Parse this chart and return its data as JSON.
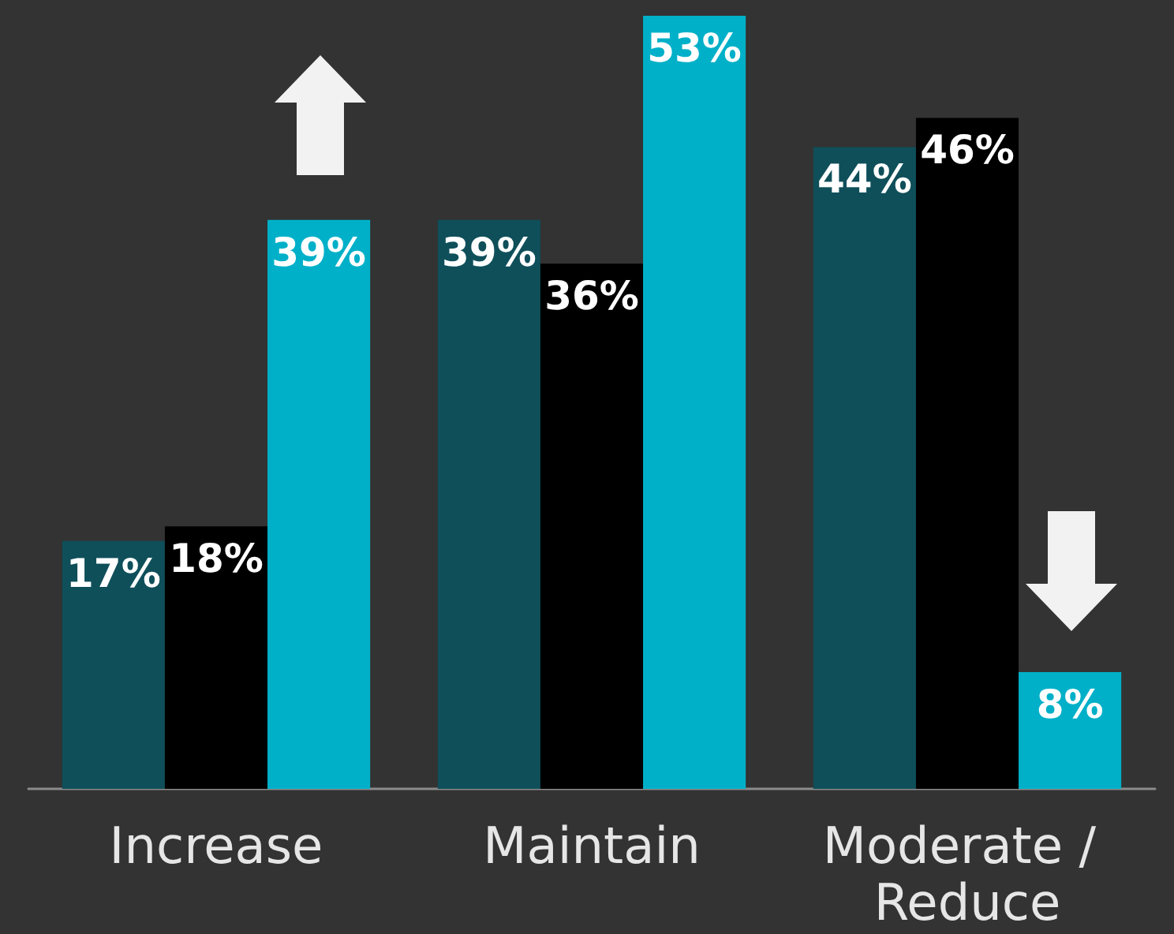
{
  "chart_data": {
    "type": "bar",
    "categories": [
      "Increase",
      "Maintain",
      "Moderate / Reduce"
    ],
    "series": [
      {
        "color": "#0f4f5a",
        "values": [
          17,
          39,
          44
        ],
        "value_labels": [
          "17%",
          "39%",
          "44%"
        ]
      },
      {
        "color": "#000000",
        "values": [
          18,
          36,
          46
        ],
        "value_labels": [
          "18%",
          "36%",
          "46%"
        ]
      },
      {
        "color": "#00b0c8",
        "values": [
          39,
          53,
          8
        ],
        "value_labels": [
          "39%",
          "53%",
          "8%"
        ]
      }
    ]
  }
}
